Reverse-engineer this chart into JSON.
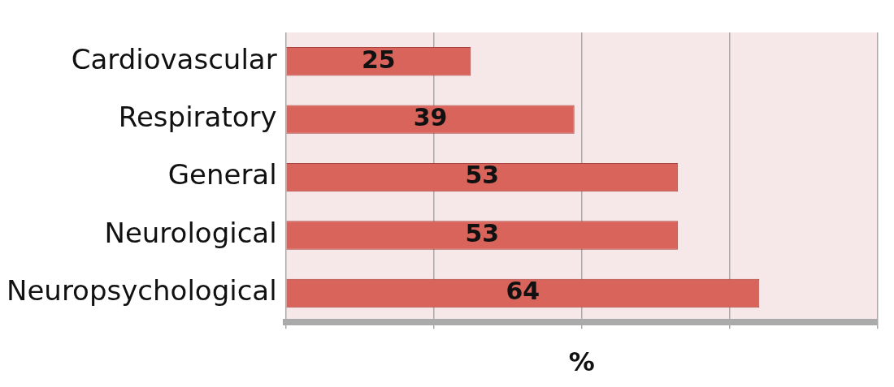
{
  "chart_data": {
    "type": "bar",
    "orientation": "horizontal",
    "xlabel": "%",
    "categories": [
      "Cardiovascular",
      "Respiratory",
      "General",
      "Neurological",
      "Neuropsychological"
    ],
    "values": [
      25,
      39,
      53,
      53,
      64
    ],
    "color": "#d9645c",
    "xlim": [
      0,
      80
    ],
    "xticks": [
      {
        "value": 0,
        "label": null
      },
      {
        "value": 20,
        "label": null
      },
      {
        "value": 40,
        "label": null
      },
      {
        "value": 60,
        "label": null
      },
      {
        "value": 80,
        "label": null
      }
    ],
    "grid": "x",
    "data_labels": true,
    "legend": false
  }
}
